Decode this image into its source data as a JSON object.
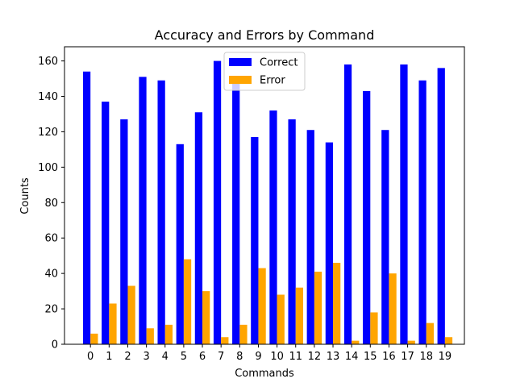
{
  "chart_data": {
    "type": "bar",
    "title": "Accuracy and Errors by Command",
    "xlabel": "Commands",
    "ylabel": "Counts",
    "categories": [
      "0",
      "1",
      "2",
      "3",
      "4",
      "5",
      "6",
      "7",
      "8",
      "9",
      "10",
      "11",
      "12",
      "13",
      "14",
      "15",
      "16",
      "17",
      "18",
      "19"
    ],
    "series": [
      {
        "name": "Correct",
        "color": "#0000ff",
        "values": [
          154,
          137,
          127,
          151,
          149,
          113,
          131,
          160,
          150,
          117,
          132,
          127,
          121,
          114,
          158,
          143,
          121,
          158,
          149,
          156
        ]
      },
      {
        "name": "Error",
        "color": "#ffa500",
        "values": [
          6,
          23,
          33,
          9,
          11,
          48,
          30,
          4,
          11,
          43,
          28,
          32,
          41,
          46,
          2,
          18,
          40,
          2,
          12,
          4
        ]
      }
    ],
    "ylim": [
      0,
      168
    ],
    "yticks": [
      0,
      20,
      40,
      60,
      80,
      100,
      120,
      140,
      160
    ],
    "grid": false,
    "legend_position": "top-center"
  }
}
